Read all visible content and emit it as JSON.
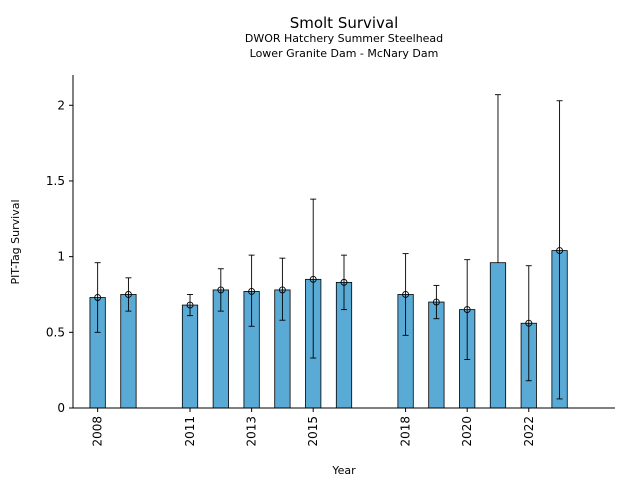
{
  "chart_data": {
    "type": "bar",
    "title": "Smolt Survival",
    "subtitle_lines": [
      "DWOR Hatchery Summer Steelhead",
      "Lower Granite Dam - McNary Dam"
    ],
    "xlabel": "Year",
    "ylabel": "PIT-Tag Survival",
    "ylim": [
      0,
      2.2
    ],
    "xlim": [
      2007.2,
      2024.8
    ],
    "yticks": [
      0,
      0.5,
      1,
      1.5,
      2
    ],
    "ytick_labels": [
      "0",
      "0.5",
      "1",
      "1.5",
      "2"
    ],
    "xticks": [
      2008,
      2011,
      2013,
      2015,
      2018,
      2020,
      2022
    ],
    "xtick_labels": [
      "2008",
      "2011",
      "2013",
      "2015",
      "2018",
      "2020",
      "2022"
    ],
    "bar_color": "#5aaad6",
    "grid": false,
    "legend": "none",
    "series": [
      {
        "x": [
          2008,
          2009,
          2011,
          2012,
          2013,
          2014,
          2015,
          2016,
          2018,
          2019,
          2020,
          2021,
          2022,
          2023
        ],
        "values": [
          0.73,
          0.75,
          0.68,
          0.78,
          0.77,
          0.78,
          0.85,
          0.83,
          0.75,
          0.7,
          0.65,
          0.96,
          0.56,
          1.04
        ],
        "lower": [
          0.5,
          0.64,
          0.61,
          0.64,
          0.54,
          0.58,
          0.33,
          0.65,
          0.48,
          0.59,
          0.32,
          null,
          0.18,
          0.06
        ],
        "upper": [
          0.96,
          0.86,
          0.75,
          0.92,
          1.01,
          0.99,
          1.38,
          1.01,
          1.02,
          0.81,
          0.98,
          2.07,
          0.94,
          2.03
        ],
        "marker": [
          true,
          true,
          true,
          true,
          true,
          true,
          true,
          true,
          true,
          true,
          true,
          false,
          true,
          true
        ]
      }
    ]
  }
}
